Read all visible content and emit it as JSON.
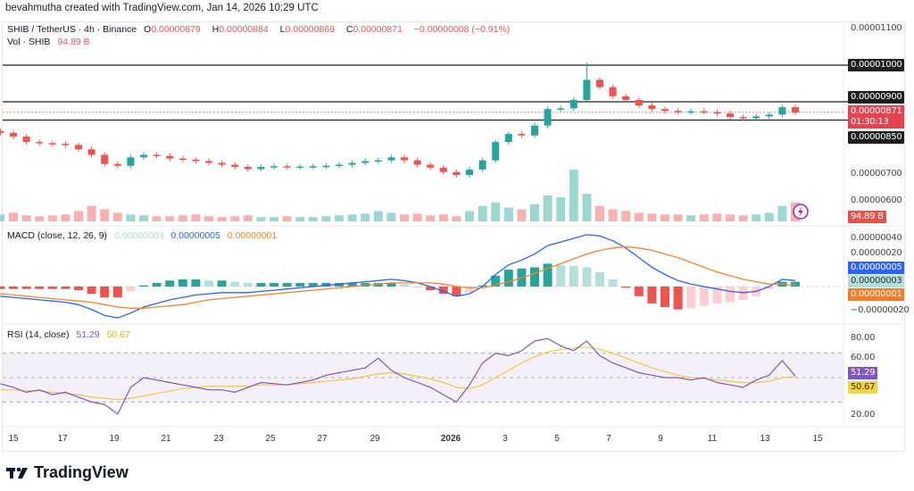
{
  "credit": "bevahmutha created with TradingView.com, Jan 14, 2026 10:29 UTC",
  "header": {
    "symbol": "SHIB / TetherUS · 4h · Binance",
    "o_label": "O",
    "open": "0.00000879",
    "h_label": "H",
    "high": "0.00000884",
    "l_label": "L",
    "low": "0.00000869",
    "c_label": "C",
    "close": "0.00000871",
    "change": "−0.00000008 (−0.91%)",
    "vol_label": "Vol · SHIB",
    "vol_value": "94.89 B"
  },
  "price_scale": {
    "ticks": [
      "0.00001100",
      "0.00000700",
      "0.00000600"
    ],
    "levels": [
      "0.00001000",
      "0.00000900",
      "0.00000850"
    ],
    "current_price": "0.00000871",
    "countdown": "01:30:13",
    "volume_badge": "94.89 B"
  },
  "macd": {
    "title": "MACD (close, 12, 26, 9)",
    "hist_value": "0.00000003",
    "macd_value": "0.00000005",
    "signal_value": "0.00000001",
    "ticks": [
      "0.00000040",
      "0.00000020",
      "−0.00000020"
    ]
  },
  "rsi": {
    "title": "RSI (14, close)",
    "value": "51.29",
    "ma_value": "50.67",
    "ticks": [
      "80.00",
      "60.00",
      "20.00"
    ]
  },
  "time_axis": [
    "15",
    "17",
    "19",
    "21",
    "23",
    "25",
    "27",
    "29",
    "2026",
    "3",
    "5",
    "7",
    "9",
    "11",
    "13",
    "15"
  ],
  "brand": "TradingView",
  "colors": {
    "up": "#26a69a",
    "down": "#ef5350",
    "macd": "#2962ff",
    "signal": "#ff7f27",
    "rsi": "#7e57c2",
    "rsi_ma": "#f5c842"
  },
  "chart_data": {
    "type": "candlestick",
    "interval": "12h samples (approx, units 1e-8 USDT)",
    "start_day_offset": -0.5,
    "step_days": 0.5,
    "closes": [
      815,
      805,
      790,
      787,
      785,
      782,
      770,
      755,
      730,
      725,
      748,
      755,
      752,
      745,
      742,
      738,
      733,
      728,
      722,
      716,
      722,
      724,
      722,
      723,
      724,
      725,
      728,
      733,
      738,
      740,
      748,
      740,
      728,
      720,
      708,
      700,
      715,
      740,
      790,
      812,
      808,
      835,
      880,
      882,
      905,
      960,
      940,
      915,
      905,
      890,
      880,
      875,
      872,
      874,
      872,
      868,
      858,
      855,
      860,
      865,
      885,
      871
    ],
    "volume": [
      8,
      10,
      7,
      6,
      7,
      8,
      12,
      18,
      14,
      10,
      8,
      7,
      6,
      6,
      7,
      8,
      6,
      5,
      6,
      7,
      5,
      5,
      6,
      5,
      5,
      6,
      7,
      8,
      9,
      12,
      10,
      8,
      9,
      7,
      8,
      6,
      12,
      18,
      22,
      16,
      14,
      20,
      30,
      28,
      60,
      32,
      18,
      14,
      12,
      10,
      9,
      8,
      8,
      7,
      8,
      9,
      8,
      7,
      8,
      10,
      18,
      22
    ],
    "macd_line": [
      -8,
      -9,
      -10,
      -11,
      -12,
      -13,
      -15,
      -19,
      -24,
      -26,
      -22,
      -17,
      -14,
      -11,
      -9,
      -7,
      -6,
      -5,
      -5,
      -5,
      -4,
      -3,
      -2,
      -1,
      0,
      1,
      2,
      3,
      4,
      5,
      6,
      5,
      3,
      0,
      -4,
      -8,
      -6,
      0,
      10,
      18,
      22,
      27,
      34,
      37,
      40,
      43,
      42,
      38,
      32,
      24,
      16,
      10,
      5,
      2,
      0,
      -2,
      -4,
      -5,
      -4,
      0,
      6,
      5
    ],
    "signal_line": [
      -6,
      -7,
      -8,
      -9,
      -10,
      -11,
      -12,
      -13,
      -15,
      -17,
      -18,
      -18,
      -17,
      -16,
      -15,
      -13,
      -11,
      -10,
      -9,
      -8,
      -7,
      -6,
      -5,
      -4,
      -3,
      -2,
      -1,
      0,
      1,
      2,
      3,
      3,
      3,
      3,
      2,
      0,
      -1,
      -1,
      1,
      4,
      7,
      11,
      15,
      19,
      23,
      27,
      30,
      32,
      33,
      32,
      30,
      27,
      24,
      20,
      16,
      12,
      9,
      6,
      4,
      2,
      2,
      1
    ],
    "rsi": [
      45,
      42,
      38,
      40,
      36,
      38,
      34,
      30,
      28,
      20,
      42,
      50,
      48,
      46,
      44,
      42,
      40,
      40,
      38,
      42,
      46,
      45,
      44,
      46,
      48,
      52,
      54,
      56,
      58,
      66,
      56,
      50,
      46,
      42,
      36,
      30,
      44,
      62,
      70,
      68,
      72,
      80,
      82,
      76,
      72,
      80,
      68,
      62,
      58,
      54,
      52,
      50,
      50,
      48,
      50,
      46,
      44,
      42,
      48,
      52,
      64,
      51.29
    ],
    "rsi_ma": [
      40,
      40,
      39,
      39,
      38,
      37,
      36,
      34,
      33,
      32,
      33,
      35,
      37,
      39,
      41,
      42,
      43,
      43,
      43,
      43,
      44,
      44,
      44,
      45,
      46,
      47,
      48,
      49,
      51,
      53,
      54,
      53,
      51,
      49,
      46,
      42,
      41,
      44,
      50,
      56,
      62,
      67,
      71,
      73,
      74,
      75,
      73,
      70,
      66,
      62,
      58,
      55,
      52,
      50,
      49,
      48,
      47,
      46,
      46,
      47,
      50,
      50.67
    ],
    "horizontal_levels": [
      1e-05,
      9e-06,
      8.5e-06
    ],
    "price_range": [
      6e-06,
      1.12e-05
    ],
    "rsi_bands": [
      30,
      70
    ]
  }
}
